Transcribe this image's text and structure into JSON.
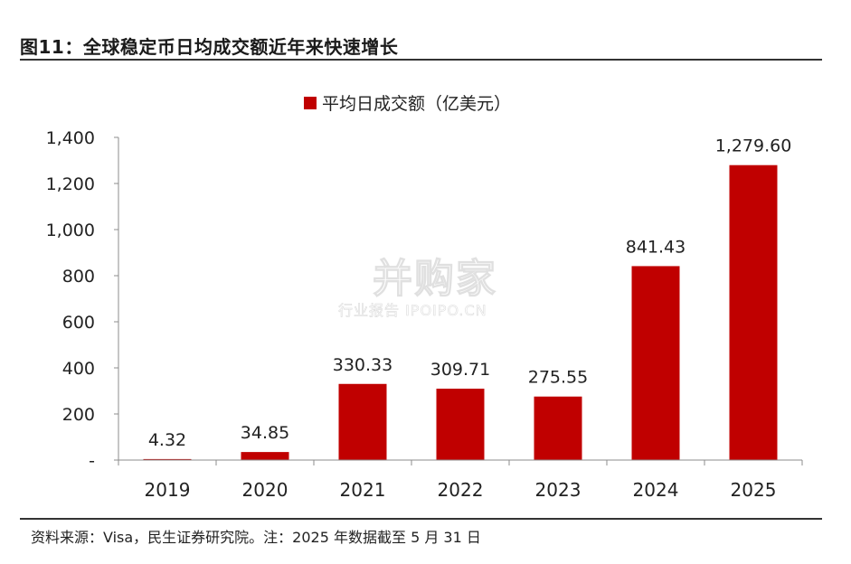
{
  "header": {
    "title": "图11：全球稳定币日均成交额近年来快速增长"
  },
  "footer": {
    "source": "资料来源：Visa，民生证券研究院。注：2025 年数据截至 5 月 31 日"
  },
  "watermark": {
    "brand": "并购家",
    "sub": "行业报告 IPOIPO.CN"
  },
  "chart_data": {
    "type": "bar",
    "categories": [
      "2019",
      "2020",
      "2021",
      "2022",
      "2023",
      "2024",
      "2025"
    ],
    "series": [
      {
        "name": "平均日成交额（亿美元）",
        "values": [
          4.32,
          34.85,
          330.33,
          309.71,
          275.55,
          841.43,
          1279.6
        ]
      }
    ],
    "data_labels": [
      "4.32",
      "34.85",
      "330.33",
      "309.71",
      "275.55",
      "841.43",
      "1,279.60"
    ],
    "ylim": [
      0,
      1400
    ],
    "yticks": [
      0,
      200,
      400,
      600,
      800,
      1000,
      1200,
      1400
    ],
    "ytick_labels": [
      "-",
      "200",
      "400",
      "600",
      "800",
      "1,000",
      "1,200",
      "1,400"
    ],
    "legend_position": "top-center",
    "grid": false,
    "colors": {
      "bar": "#c00000",
      "axis": "#8c8c8c",
      "text": "#222222"
    }
  }
}
